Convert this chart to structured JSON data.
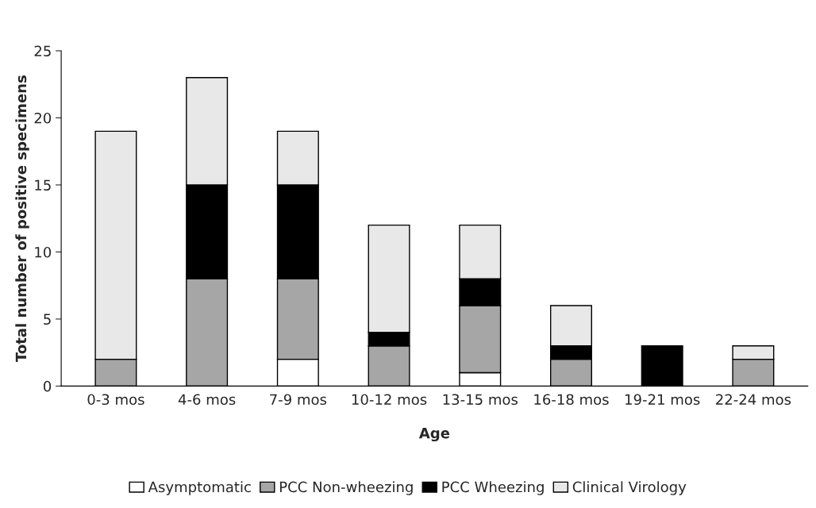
{
  "chart_data": {
    "type": "bar",
    "stacked": true,
    "xlabel": "Age",
    "ylabel": "Total number of positive specimens",
    "categories": [
      "0-3 mos",
      "4-6 mos",
      "7-9 mos",
      "10-12 mos",
      "13-15 mos",
      "16-18 mos",
      "19-21 mos",
      "22-24 mos"
    ],
    "series": [
      {
        "name": "Asymptomatic",
        "color": "#ffffff",
        "values": [
          0,
          0,
          2,
          0,
          1,
          0,
          0,
          0
        ]
      },
      {
        "name": "PCC Non-wheezing",
        "color": "#a6a6a6",
        "values": [
          2,
          8,
          6,
          3,
          5,
          2,
          0,
          2
        ]
      },
      {
        "name": "PCC Wheezing",
        "color": "#000000",
        "values": [
          0,
          7,
          7,
          1,
          2,
          1,
          3,
          0
        ]
      },
      {
        "name": "Clinical Virology",
        "color": "#e8e8e8",
        "values": [
          17,
          8,
          4,
          8,
          4,
          3,
          0,
          1
        ]
      }
    ],
    "ylim": [
      0,
      25
    ],
    "yticks": [
      0,
      5,
      10,
      15,
      20,
      25
    ],
    "grid": false,
    "legend": "bottom"
  }
}
